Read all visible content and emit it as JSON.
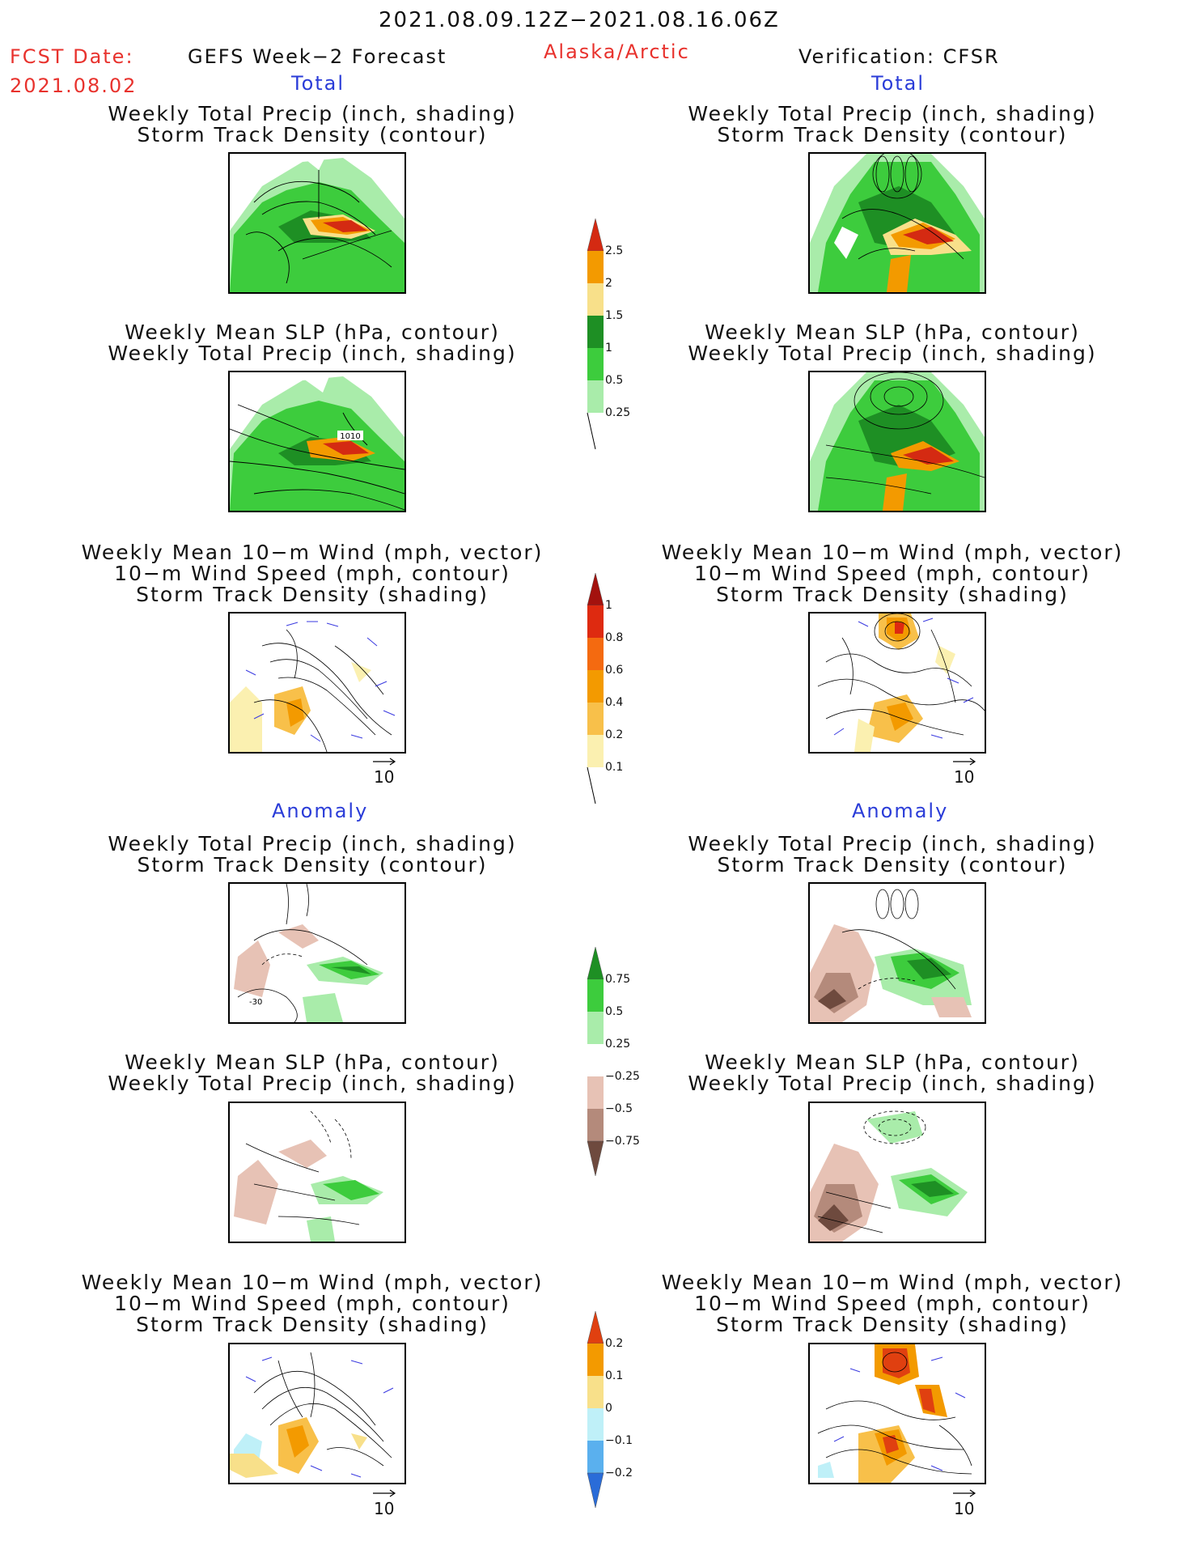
{
  "header": {
    "period": "2021.08.09.12Z−2021.08.16.06Z",
    "fcst_label": "FCST Date:",
    "fcst_date": "2021.08.02",
    "product": "GEFS Week−2 Forecast",
    "region": "Alaska/Arctic",
    "verification": "Verification: CFSR"
  },
  "sections": {
    "total": "Total",
    "anomaly": "Anomaly"
  },
  "panel_titles": {
    "precip_track": [
      "Weekly Total Precip (inch, shading)",
      "Storm Track Density (contour)"
    ],
    "slp_precip": [
      "Weekly Mean SLP (hPa, contour)",
      "Weekly Total Precip (inch, shading)"
    ],
    "wind": [
      "Weekly Mean 10−m Wind (mph, vector)",
      "10−m Wind Speed (mph, contour)",
      "Storm Track Density (shading)"
    ]
  },
  "contour_label": "1010",
  "contour_label_anom": "-30",
  "wind_reference": "10",
  "colorbars": {
    "total_precip": {
      "labels": [
        "2.5",
        "2",
        "1.5",
        "1",
        "0.5",
        "0.25"
      ],
      "colors": [
        "#d42a12",
        "#f39a00",
        "#f8e08a",
        "#1e8f24",
        "#3dcc3d",
        "#a9ecaa"
      ]
    },
    "track_density": {
      "labels": [
        "1",
        "0.8",
        "0.6",
        "0.4",
        "0.2",
        "0.1"
      ],
      "colors": [
        "#a3120e",
        "#de2a10",
        "#f46a10",
        "#f39a00",
        "#f8c04a",
        "#fbf0b0"
      ]
    },
    "precip_anomaly": {
      "labels": [
        "0.75",
        "0.5",
        "0.25",
        "−0.25",
        "−0.5",
        "−0.75"
      ],
      "colors": [
        "#1e8f24",
        "#3dcc3d",
        "#a9ecaa",
        "#ffffff",
        "#e7c2b5",
        "#b48a7b",
        "#6e4a3e"
      ]
    },
    "track_anomaly": {
      "labels": [
        "0.2",
        "0.1",
        "0",
        "−0.1",
        "−0.2"
      ],
      "colors": [
        "#e04010",
        "#f39a00",
        "#f8e08a",
        "#bff0f8",
        "#5ab0ee",
        "#2a6cd8"
      ]
    }
  },
  "colors": {
    "accent_red": "#e8322d",
    "accent_blue": "#2a3cd8"
  }
}
